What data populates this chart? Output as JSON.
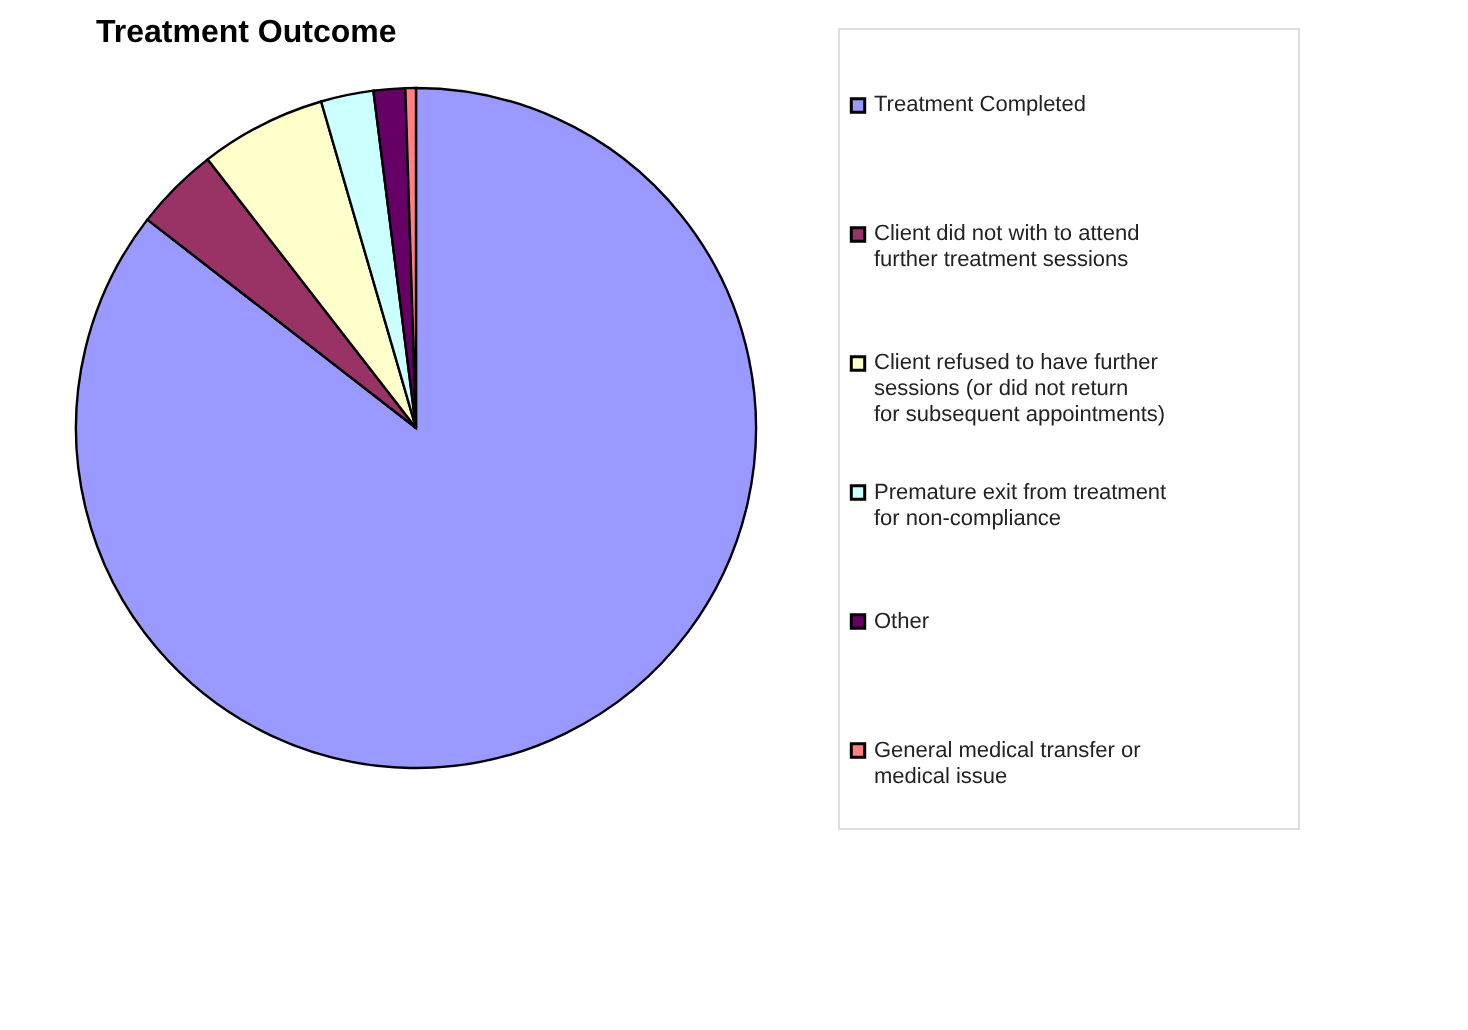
{
  "chart_data": {
    "type": "pie",
    "title": "Treatment Outcome",
    "categories": [
      "Treatment Completed",
      "Client did not with to attend further treatment sessions",
      "Client refused to have further sessions (or did not return for subsequent appointments)",
      "Premature exit from treatment for non-compliance",
      "Other",
      "General medical transfer or medical issue"
    ],
    "values": [
      85.5,
      4,
      6,
      2.5,
      1.5,
      0.5
    ],
    "colors": [
      "#9999ff",
      "#993366",
      "#ffffcc",
      "#ccffff",
      "#660066",
      "#ff8080"
    ],
    "legend": "right"
  }
}
